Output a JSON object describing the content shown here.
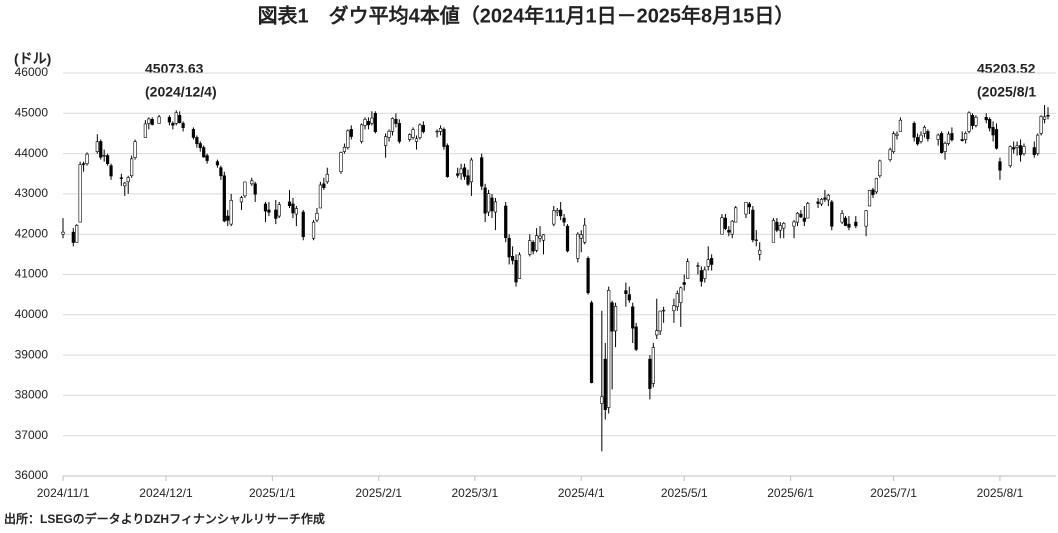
{
  "chart_data": {
    "type": "candlestick",
    "title": "図表1　ダウ平均4本値（2024年11月1日－2025年8月15日）",
    "y_label": "(ドル)",
    "source": "出所：LSEGのデータよりDZHフィナンシャルリサーチ作成",
    "annotations": [
      "45073.63",
      "(2024/12/4)",
      "45203.52",
      "(2025/8/1"
    ],
    "ylim": [
      36000,
      46000
    ],
    "yticks": [
      36000,
      37000,
      38000,
      39000,
      40000,
      41000,
      42000,
      43000,
      44000,
      45000,
      46000
    ],
    "xlim": [
      "2024/11/1",
      "2025/8/15"
    ],
    "xticks": [
      "2024/11/1",
      "2024/12/1",
      "2025/1/1",
      "2025/2/1",
      "2025/3/1",
      "2025/4/1",
      "2025/5/1",
      "2025/6/1",
      "2025/7/1",
      "2025/8/1"
    ],
    "grid": true,
    "color": "#000000",
    "x": [
      "2024/11/1",
      "2024/11/4",
      "2024/11/5",
      "2024/11/6",
      "2024/11/7",
      "2024/11/8",
      "2024/11/11",
      "2024/11/12",
      "2024/11/13",
      "2024/11/14",
      "2024/11/15",
      "2024/11/18",
      "2024/11/19",
      "2024/11/20",
      "2024/11/21",
      "2024/11/22",
      "2024/11/25",
      "2024/11/26",
      "2024/11/27",
      "2024/11/29",
      "2024/12/2",
      "2024/12/3",
      "2024/12/4",
      "2024/12/5",
      "2024/12/6",
      "2024/12/9",
      "2024/12/10",
      "2024/12/11",
      "2024/12/12",
      "2024/12/13",
      "2024/12/16",
      "2024/12/17",
      "2024/12/18",
      "2024/12/19",
      "2024/12/20",
      "2024/12/23",
      "2024/12/24",
      "2024/12/26",
      "2024/12/27",
      "2024/12/30",
      "2024/12/31",
      "2025/1/2",
      "2025/1/3",
      "2025/1/6",
      "2025/1/7",
      "2025/1/8",
      "2025/1/10",
      "2025/1/13",
      "2025/1/14",
      "2025/1/15",
      "2025/1/16",
      "2025/1/17",
      "2025/1/21",
      "2025/1/22",
      "2025/1/23",
      "2025/1/24",
      "2025/1/27",
      "2025/1/28",
      "2025/1/29",
      "2025/1/30",
      "2025/1/31",
      "2025/2/3",
      "2025/2/4",
      "2025/2/5",
      "2025/2/6",
      "2025/2/7",
      "2025/2/10",
      "2025/2/11",
      "2025/2/12",
      "2025/2/13",
      "2025/2/14",
      "2025/2/18",
      "2025/2/19",
      "2025/2/20",
      "2025/2/21",
      "2025/2/24",
      "2025/2/25",
      "2025/2/26",
      "2025/2/27",
      "2025/2/28",
      "2025/3/3",
      "2025/3/4",
      "2025/3/5",
      "2025/3/6",
      "2025/3/7",
      "2025/3/10",
      "2025/3/11",
      "2025/3/12",
      "2025/3/13",
      "2025/3/14",
      "2025/3/17",
      "2025/3/18",
      "2025/3/19",
      "2025/3/20",
      "2025/3/21",
      "2025/3/24",
      "2025/3/25",
      "2025/3/26",
      "2025/3/27",
      "2025/3/28",
      "2025/3/31",
      "2025/4/1",
      "2025/4/2",
      "2025/4/3",
      "2025/4/4",
      "2025/4/7",
      "2025/4/8",
      "2025/4/9",
      "2025/4/10",
      "2025/4/11",
      "2025/4/14",
      "2025/4/15",
      "2025/4/16",
      "2025/4/17",
      "2025/4/21",
      "2025/4/22",
      "2025/4/23",
      "2025/4/24",
      "2025/4/25",
      "2025/4/28",
      "2025/4/29",
      "2025/4/30",
      "2025/5/1",
      "2025/5/2",
      "2025/5/5",
      "2025/5/6",
      "2025/5/7",
      "2025/5/8",
      "2025/5/9",
      "2025/5/12",
      "2025/5/13",
      "2025/5/14",
      "2025/5/15",
      "2025/5/16",
      "2025/5/19",
      "2025/5/20",
      "2025/5/21",
      "2025/5/22",
      "2025/5/23",
      "2025/5/27",
      "2025/5/28",
      "2025/5/29",
      "2025/5/30",
      "2025/6/2",
      "2025/6/3",
      "2025/6/4",
      "2025/6/5",
      "2025/6/6",
      "2025/6/9",
      "2025/6/10",
      "2025/6/11",
      "2025/6/12",
      "2025/6/13",
      "2025/6/16",
      "2025/6/17",
      "2025/6/18",
      "2025/6/20",
      "2025/6/23",
      "2025/6/24",
      "2025/6/25",
      "2025/6/26",
      "2025/6/27",
      "2025/6/30",
      "2025/7/1",
      "2025/7/2",
      "2025/7/3",
      "2025/7/7",
      "2025/7/8",
      "2025/7/9",
      "2025/7/10",
      "2025/7/11",
      "2025/7/14",
      "2025/7/15",
      "2025/7/16",
      "2025/7/17",
      "2025/7/18",
      "2025/7/21",
      "2025/7/22",
      "2025/7/23",
      "2025/7/24",
      "2025/7/25",
      "2025/7/28",
      "2025/7/29",
      "2025/7/30",
      "2025/7/31",
      "2025/8/1",
      "2025/8/4",
      "2025/8/5",
      "2025/8/6",
      "2025/8/7",
      "2025/8/8",
      "2025/8/11",
      "2025/8/12",
      "2025/8/13",
      "2025/8/14",
      "2025/8/15"
    ],
    "ohlc": [
      [
        42000,
        42400,
        41900,
        42052
      ],
      [
        42050,
        42150,
        41700,
        41794
      ],
      [
        41800,
        42250,
        41790,
        42221
      ],
      [
        42300,
        43800,
        42300,
        43729
      ],
      [
        43750,
        43800,
        43550,
        43729
      ],
      [
        43750,
        44030,
        43700,
        43988
      ],
      [
        44050,
        44480,
        44000,
        44293
      ],
      [
        44300,
        44350,
        43850,
        43910
      ],
      [
        43950,
        44100,
        43800,
        43958
      ],
      [
        43950,
        44000,
        43700,
        43750
      ],
      [
        43700,
        43750,
        43350,
        43444
      ],
      [
        43400,
        43500,
        43200,
        43389
      ],
      [
        43200,
        43300,
        42950,
        43268
      ],
      [
        43300,
        43450,
        43000,
        43408
      ],
      [
        43450,
        43950,
        43400,
        43870
      ],
      [
        43900,
        44350,
        43850,
        44296
      ],
      [
        44400,
        44830,
        44400,
        44736
      ],
      [
        44750,
        44900,
        44600,
        44860
      ],
      [
        44850,
        44900,
        44700,
        44722
      ],
      [
        44750,
        44960,
        44750,
        44911
      ],
      [
        44900,
        44950,
        44700,
        44782
      ],
      [
        44750,
        44800,
        44600,
        44705
      ],
      [
        44750,
        45073.63,
        44700,
        45014
      ],
      [
        44950,
        45050,
        44750,
        44765
      ],
      [
        44750,
        44800,
        44550,
        44643
      ],
      [
        44600,
        44650,
        44350,
        44401
      ],
      [
        44400,
        44450,
        44150,
        44248
      ],
      [
        44250,
        44300,
        44050,
        44149
      ],
      [
        44150,
        44200,
        43900,
        43915
      ],
      [
        43950,
        44000,
        43750,
        43828
      ],
      [
        43800,
        43850,
        43650,
        43717
      ],
      [
        43650,
        43700,
        43350,
        43450
      ],
      [
        43450,
        43550,
        42300,
        42327
      ],
      [
        42450,
        42600,
        42200,
        42343
      ],
      [
        42250,
        43000,
        42200,
        42840
      ],
      [
        42800,
        42950,
        42600,
        42907
      ],
      [
        42950,
        43300,
        42900,
        43297
      ],
      [
        43250,
        43400,
        43200,
        43326
      ],
      [
        43250,
        43300,
        42800,
        42992
      ],
      [
        42750,
        42800,
        42300,
        42574
      ],
      [
        42600,
        42800,
        42450,
        42544
      ],
      [
        42600,
        42850,
        42250,
        42392
      ],
      [
        42450,
        42800,
        42400,
        42732
      ],
      [
        42800,
        43100,
        42650,
        42706
      ],
      [
        42750,
        42900,
        42400,
        42528
      ],
      [
        42500,
        42700,
        42200,
        42635
      ],
      [
        42550,
        42600,
        41850,
        41938
      ],
      [
        41900,
        42350,
        41850,
        42297
      ],
      [
        42350,
        42650,
        42300,
        42518
      ],
      [
        42650,
        43300,
        42650,
        43221
      ],
      [
        43250,
        43400,
        43100,
        43153
      ],
      [
        43300,
        43650,
        43250,
        43488
      ],
      [
        43550,
        44050,
        43500,
        44025
      ],
      [
        44050,
        44250,
        44000,
        44157
      ],
      [
        44150,
        44600,
        44100,
        44565
      ],
      [
        44600,
        44700,
        44350,
        44424
      ],
      [
        44300,
        44750,
        44250,
        44714
      ],
      [
        44700,
        44900,
        44600,
        44850
      ],
      [
        44800,
        44900,
        44600,
        44714
      ],
      [
        44750,
        45050,
        44700,
        44882
      ],
      [
        45000,
        45050,
        44500,
        44545
      ],
      [
        44200,
        44500,
        43900,
        44421
      ],
      [
        44400,
        44600,
        44300,
        44556
      ],
      [
        44550,
        44900,
        44450,
        44873
      ],
      [
        44850,
        45000,
        44650,
        44747
      ],
      [
        44750,
        44850,
        44250,
        44303
      ],
      [
        44350,
        44500,
        44300,
        44470
      ],
      [
        44400,
        44650,
        44350,
        44593
      ],
      [
        44300,
        44450,
        44100,
        44369
      ],
      [
        44400,
        44750,
        44350,
        44711
      ],
      [
        44700,
        44800,
        44500,
        44546
      ],
      [
        44550,
        44600,
        44400,
        44556
      ],
      [
        44550,
        44700,
        44450,
        44628
      ],
      [
        44600,
        44650,
        44100,
        44177
      ],
      [
        44200,
        44250,
        43400,
        43428
      ],
      [
        43500,
        43650,
        43400,
        43461
      ],
      [
        43500,
        43750,
        43350,
        43621
      ],
      [
        43650,
        43750,
        43350,
        43433
      ],
      [
        43450,
        43600,
        43200,
        43239
      ],
      [
        43300,
        43900,
        42950,
        43841
      ],
      [
        43900,
        44000,
        43100,
        43191
      ],
      [
        43150,
        43250,
        42300,
        42520
      ],
      [
        42550,
        43100,
        42450,
        43006
      ],
      [
        42900,
        43000,
        42400,
        42579
      ],
      [
        42550,
        42900,
        42100,
        42802
      ],
      [
        42700,
        42800,
        41800,
        41912
      ],
      [
        41900,
        42000,
        41250,
        41433
      ],
      [
        41450,
        41700,
        41250,
        41350
      ],
      [
        41350,
        41500,
        40700,
        40813
      ],
      [
        40900,
        41550,
        40900,
        41488
      ],
      [
        41500,
        42000,
        41450,
        41841
      ],
      [
        41800,
        41850,
        41500,
        41582
      ],
      [
        41600,
        42150,
        41550,
        41965
      ],
      [
        41900,
        42200,
        41800,
        41953
      ],
      [
        41850,
        42000,
        41500,
        41985
      ],
      [
        42250,
        42700,
        42200,
        42583
      ],
      [
        42550,
        42650,
        42450,
        42587
      ],
      [
        42600,
        42800,
        42350,
        42455
      ],
      [
        42400,
        42500,
        42200,
        42300
      ],
      [
        42200,
        42250,
        41550,
        41584
      ],
      [
        41400,
        42050,
        41300,
        42002
      ],
      [
        41900,
        42100,
        41550,
        41989
      ],
      [
        41800,
        42400,
        41750,
        42225
      ],
      [
        41400,
        41450,
        40500,
        40546
      ],
      [
        40300,
        40350,
        38300,
        38315
      ],
      [
        37800,
        40100,
        36612,
        37966
      ],
      [
        38900,
        39300,
        37400,
        37646
      ],
      [
        37700,
        40700,
        37550,
        40608
      ],
      [
        40300,
        40350,
        38150,
        39594
      ],
      [
        39600,
        40300,
        39200,
        40212
      ],
      [
        40600,
        40800,
        40200,
        40525
      ],
      [
        40500,
        40700,
        40300,
        40368
      ],
      [
        40200,
        40300,
        39300,
        39669
      ],
      [
        39700,
        39800,
        39100,
        39142
      ],
      [
        38900,
        39000,
        37900,
        38170
      ],
      [
        38300,
        39300,
        38200,
        39187
      ],
      [
        39500,
        40400,
        39400,
        39607
      ],
      [
        39600,
        40100,
        39500,
        40093
      ],
      [
        40100,
        40200,
        39800,
        40114
      ],
      [
        40100,
        40400,
        39800,
        40228
      ],
      [
        40200,
        40600,
        40100,
        40528
      ],
      [
        40300,
        40700,
        39700,
        40669
      ],
      [
        40800,
        41000,
        40600,
        40753
      ],
      [
        40900,
        41400,
        40900,
        41317
      ],
      [
        41200,
        41300,
        41000,
        41219
      ],
      [
        41100,
        41200,
        40700,
        40829
      ],
      [
        40900,
        41200,
        40800,
        41114
      ],
      [
        41200,
        41700,
        41100,
        41368
      ],
      [
        41400,
        41500,
        41100,
        41249
      ],
      [
        42000,
        42500,
        42000,
        42410
      ],
      [
        42400,
        42500,
        42100,
        42140
      ],
      [
        42100,
        42200,
        41950,
        42051
      ],
      [
        42000,
        42350,
        41900,
        42323
      ],
      [
        42300,
        42700,
        42300,
        42655
      ],
      [
        42500,
        42800,
        42400,
        42792
      ],
      [
        42750,
        42800,
        42500,
        42677
      ],
      [
        42600,
        42700,
        41800,
        41860
      ],
      [
        41850,
        42100,
        41700,
        41859
      ],
      [
        41500,
        41800,
        41350,
        41603
      ],
      [
        41800,
        42400,
        41800,
        42343
      ],
      [
        42300,
        42400,
        42050,
        42098
      ],
      [
        42100,
        42300,
        41900,
        42216
      ],
      [
        42150,
        42300,
        41900,
        42270
      ],
      [
        42200,
        42350,
        41900,
        42305
      ],
      [
        42300,
        42550,
        42200,
        42520
      ],
      [
        42500,
        42600,
        42400,
        42428
      ],
      [
        42400,
        42700,
        42200,
        42319
      ],
      [
        42400,
        42800,
        42400,
        42763
      ],
      [
        42800,
        42900,
        42650,
        42762
      ],
      [
        42750,
        42900,
        42700,
        42867
      ],
      [
        42900,
        43100,
        42800,
        42866
      ],
      [
        42850,
        43000,
        42700,
        42968
      ],
      [
        42800,
        42850,
        42100,
        42197
      ],
      [
        42300,
        42600,
        42250,
        42515
      ],
      [
        42400,
        42450,
        42200,
        42215
      ],
      [
        42250,
        42450,
        42100,
        42172
      ],
      [
        42300,
        42450,
        42150,
        42207
      ],
      [
        42200,
        42600,
        41950,
        42582
      ],
      [
        42700,
        43100,
        42700,
        43089
      ],
      [
        43100,
        43150,
        42900,
        42982
      ],
      [
        43050,
        43400,
        43000,
        43386
      ],
      [
        43450,
        43850,
        43400,
        43819
      ],
      [
        43850,
        44150,
        43800,
        44095
      ],
      [
        44050,
        44550,
        44000,
        44495
      ],
      [
        44450,
        44550,
        44350,
        44484
      ],
      [
        44550,
        44900,
        44550,
        44829
      ],
      [
        44750,
        44800,
        44300,
        44406
      ],
      [
        44400,
        44500,
        44200,
        44241
      ],
      [
        44300,
        44550,
        44250,
        44458
      ],
      [
        44500,
        44700,
        44400,
        44650
      ],
      [
        44550,
        44600,
        44300,
        44371
      ],
      [
        44350,
        44500,
        44200,
        44460
      ],
      [
        44500,
        44550,
        44000,
        44023
      ],
      [
        44050,
        44300,
        43850,
        44254
      ],
      [
        44250,
        44550,
        44200,
        44484
      ],
      [
        44500,
        44650,
        44300,
        44342
      ],
      [
        44350,
        44550,
        44300,
        44323
      ],
      [
        44350,
        44550,
        44250,
        44502
      ],
      [
        44550,
        45050,
        44500,
        45010
      ],
      [
        44950,
        45000,
        44600,
        44694
      ],
      [
        44700,
        44950,
        44650,
        44902
      ],
      [
        44900,
        45000,
        44750,
        44837
      ],
      [
        44850,
        44900,
        44550,
        44633
      ],
      [
        44650,
        44800,
        44300,
        44461
      ],
      [
        44600,
        44750,
        44100,
        44131
      ],
      [
        43800,
        43900,
        43350,
        43589
      ],
      [
        43700,
        44200,
        43650,
        44174
      ],
      [
        44150,
        44300,
        44000,
        44112
      ],
      [
        44150,
        44300,
        43950,
        44193
      ],
      [
        44200,
        44350,
        43800,
        43969
      ],
      [
        44000,
        44250,
        43950,
        44176
      ],
      [
        44150,
        44300,
        43900,
        43975
      ],
      [
        44000,
        44500,
        43950,
        44459
      ],
      [
        44500,
        44950,
        44450,
        44922
      ],
      [
        44850,
        45203.52,
        44750,
        44911
      ],
      [
        44950,
        45150,
        44850,
        44946
      ]
    ]
  }
}
